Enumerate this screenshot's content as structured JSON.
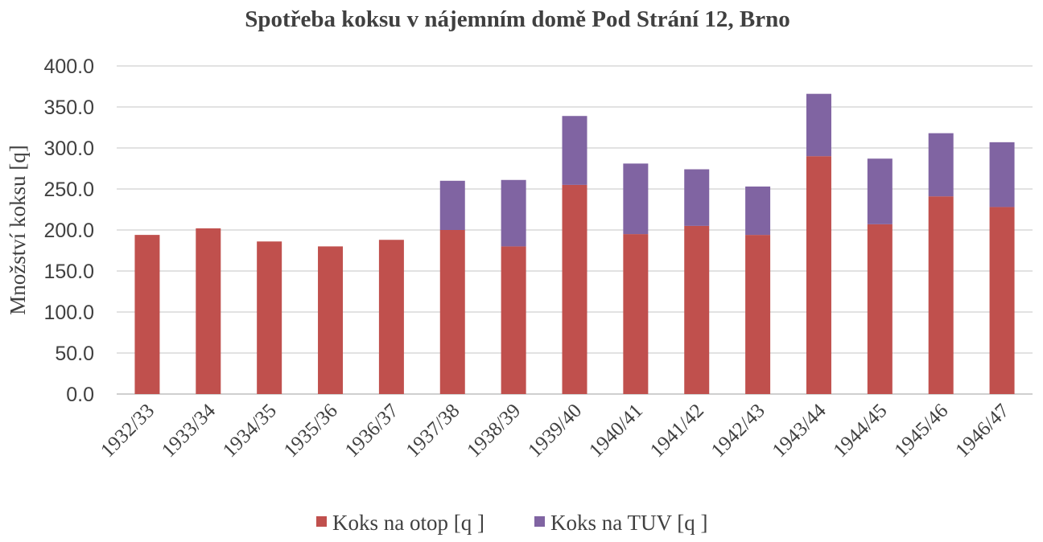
{
  "chart_data": {
    "type": "bar",
    "stacked": true,
    "title": "Spotřeba koksu v nájemním domě Pod Strání 12, Brno",
    "ylabel": "Množství koksu [q]",
    "xlabel": "",
    "ylim": [
      0,
      400
    ],
    "yticks": [
      "0.0",
      "50.0",
      "100.0",
      "150.0",
      "200.0",
      "250.0",
      "300.0",
      "350.0",
      "400.0"
    ],
    "grid": true,
    "legend_position": "bottom",
    "categories": [
      "1932/33",
      "1933/34",
      "1934/35",
      "1935/36",
      "1936/37",
      "1937/38",
      "1938/39",
      "1939/40",
      "1940/41",
      "1941/42",
      "1942/43",
      "1943/44",
      "1944/45",
      "1945/46",
      "1946/47"
    ],
    "series": [
      {
        "name": "Koks na otop [q ]",
        "color": "#c0504d",
        "values": [
          194,
          202,
          186,
          180,
          188,
          200,
          180,
          255,
          195,
          205,
          194,
          290,
          207,
          241,
          228
        ]
      },
      {
        "name": "Koks na TUV [q ]",
        "color": "#8064a2",
        "values": [
          0,
          0,
          0,
          0,
          0,
          60,
          81,
          84,
          86,
          69,
          59,
          76,
          80,
          77,
          79
        ]
      }
    ]
  }
}
